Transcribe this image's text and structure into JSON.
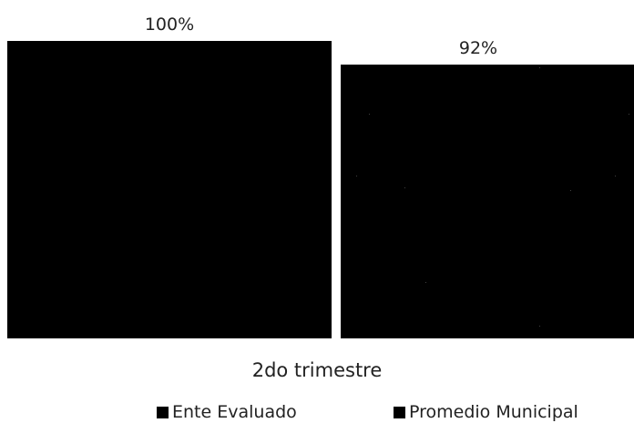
{
  "chart_data": {
    "type": "bar",
    "categories": [
      "2do trimestre"
    ],
    "series": [
      {
        "name": "Ente Evaluado",
        "values": [
          100
        ],
        "data_labels": [
          "100%"
        ],
        "color": "#000000",
        "pattern": "solid"
      },
      {
        "name": "Promedio Municipal",
        "values": [
          92
        ],
        "data_labels": [
          "92%"
        ],
        "color": "#000000",
        "pattern": "speckled"
      }
    ],
    "ylim": [
      0,
      100
    ],
    "grid": false,
    "legend_position": "bottom"
  }
}
